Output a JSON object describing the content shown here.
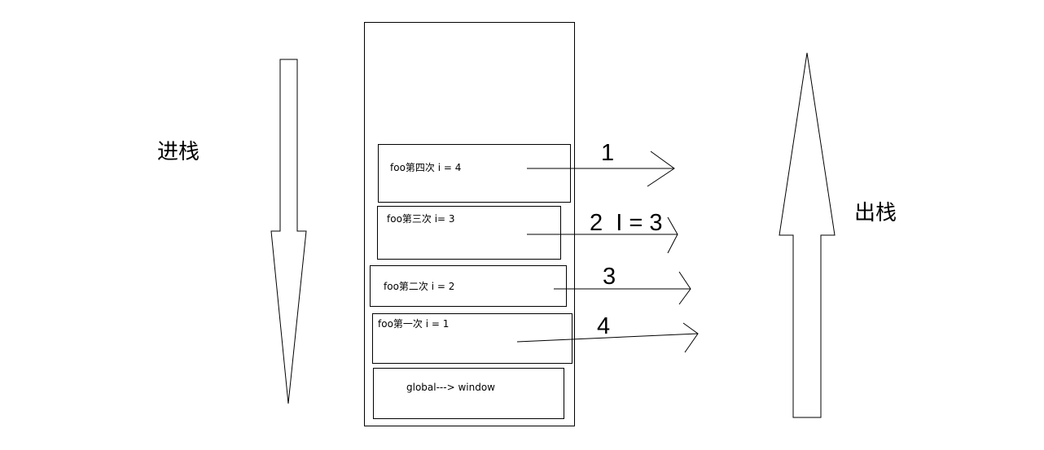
{
  "labels": {
    "push": "进栈",
    "pop": "出栈"
  },
  "frames": [
    {
      "text": "foo第四次 i = 4",
      "order": "1"
    },
    {
      "text": "foo第三次   i= 3",
      "order": "2  I = 3"
    },
    {
      "text": "foo第二次  i = 2",
      "order": "3"
    },
    {
      "text": "foo第一次 i = 1",
      "order": "4"
    },
    {
      "text": "global---> window"
    }
  ],
  "colors": {
    "line": "#000000",
    "background": "#ffffff"
  }
}
